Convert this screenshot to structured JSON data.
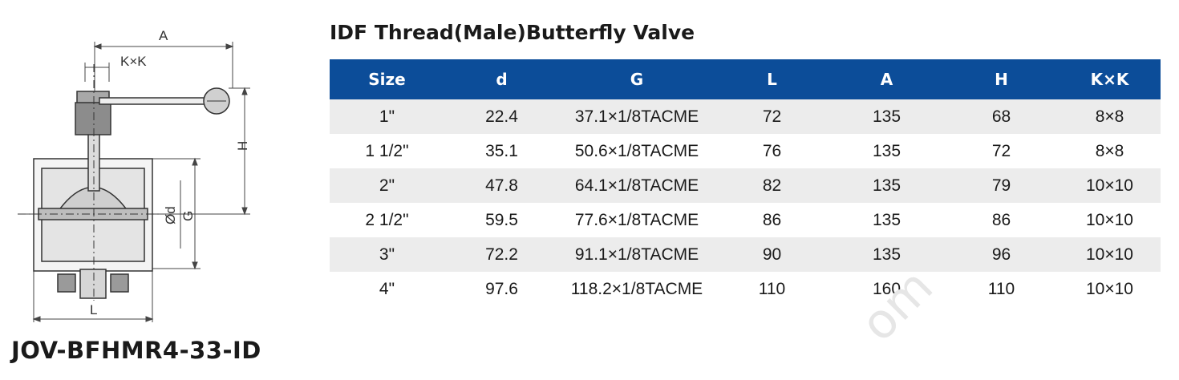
{
  "title": "IDF Thread(Male)Butterfly Valve",
  "model_code": "JOV-BFHMR4-33-ID",
  "drawing": {
    "labels": {
      "a": "A",
      "kk": "K×K",
      "h": "H",
      "d": "Ød",
      "g": "G",
      "l": "L"
    }
  },
  "table": {
    "headers": [
      "Size",
      "d",
      "G",
      "L",
      "A",
      "H",
      "K×K"
    ],
    "rows": [
      [
        "1\"",
        "22.4",
        "37.1×1/8TACME",
        "72",
        "135",
        "68",
        "8×8"
      ],
      [
        "1 1/2\"",
        "35.1",
        "50.6×1/8TACME",
        "76",
        "135",
        "72",
        "8×8"
      ],
      [
        "2\"",
        "47.8",
        "64.1×1/8TACME",
        "82",
        "135",
        "79",
        "10×10"
      ],
      [
        "2 1/2\"",
        "59.5",
        "77.6×1/8TACME",
        "86",
        "135",
        "86",
        "10×10"
      ],
      [
        "3\"",
        "72.2",
        "91.1×1/8TACME",
        "90",
        "135",
        "96",
        "10×10"
      ],
      [
        "4\"",
        "97.6",
        "118.2×1/8TACME",
        "110",
        "160",
        "110",
        "10×10"
      ]
    ]
  },
  "colors": {
    "header_bg": "#0c4d99",
    "stripe": "#ececec"
  },
  "watermark": "om"
}
